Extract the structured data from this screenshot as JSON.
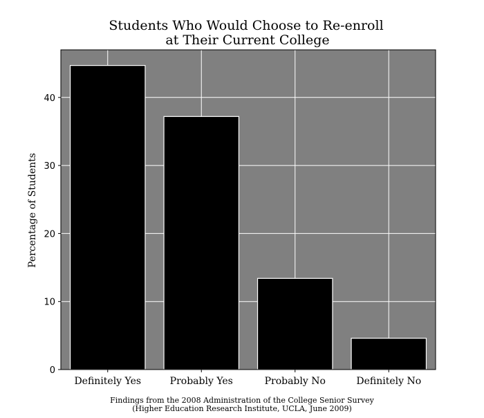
{
  "chart_data": {
    "type": "bar",
    "title_lines": [
      "Students Who Would Choose to Re-enroll",
      "at Their Current College"
    ],
    "xlabel": "",
    "ylabel": "Percentage of Students",
    "categories": [
      "Definitely Yes",
      "Probably Yes",
      "Probably No",
      "Definitely No"
    ],
    "values": [
      44.7,
      37.2,
      13.4,
      4.6
    ],
    "ylim": [
      0,
      47
    ],
    "yticks": [
      0,
      10,
      20,
      30,
      40
    ],
    "grid": true,
    "colors": {
      "background": "#ffffff",
      "plot_background": "#808080",
      "bar_fill": "#000000",
      "bar_edge": "#ffffff",
      "grid": "#ffffff",
      "axis": "#000000"
    }
  },
  "caption": {
    "line1": "Findings from the 2008 Administration of the College Senior Survey",
    "line2": "(Higher Education Research Institute, UCLA, June 2009)"
  }
}
